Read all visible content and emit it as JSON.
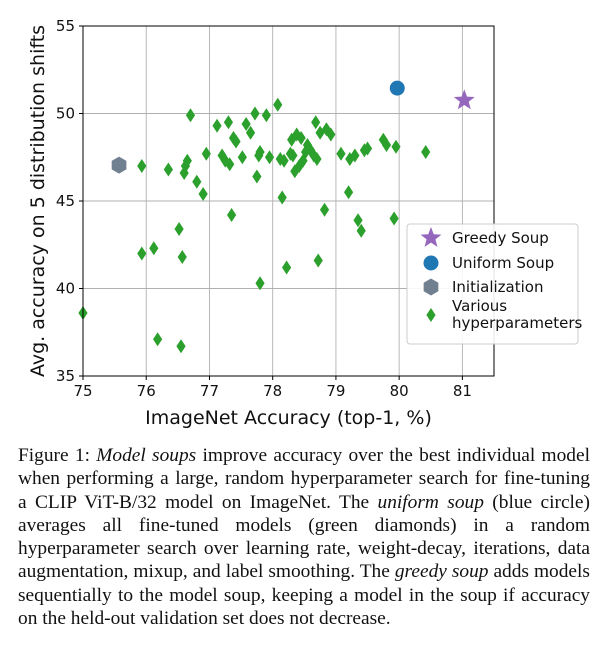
{
  "chart_data": {
    "type": "scatter",
    "xlabel": "ImageNet Accuracy (top-1, %)",
    "ylabel": "Avg. accuracy on 5 distribution shifts",
    "xlim": [
      75,
      81.5
    ],
    "ylim": [
      35,
      55
    ],
    "xticks": [
      75,
      76,
      77,
      78,
      79,
      80,
      81
    ],
    "yticks": [
      35,
      40,
      45,
      50,
      55
    ],
    "grid": true,
    "legend_position": "lower right",
    "series": [
      {
        "name": "Greedy Soup",
        "marker": "star",
        "color": "#9467bd",
        "points": [
          [
            81.03,
            50.75
          ]
        ]
      },
      {
        "name": "Uniform Soup",
        "marker": "circle",
        "color": "#1f77b4",
        "points": [
          [
            79.97,
            51.45
          ]
        ]
      },
      {
        "name": "Initialization",
        "marker": "hexagon",
        "color": "#708090",
        "points": [
          [
            75.57,
            47.05
          ]
        ]
      },
      {
        "name": "Various\nhyperparameters",
        "marker": "diamond",
        "color": "#2ca02c",
        "points": [
          [
            75.0,
            38.6
          ],
          [
            75.93,
            47.0
          ],
          [
            75.93,
            42.0
          ],
          [
            76.12,
            42.3
          ],
          [
            76.18,
            37.1
          ],
          [
            76.35,
            46.8
          ],
          [
            76.52,
            43.4
          ],
          [
            76.55,
            36.7
          ],
          [
            76.57,
            41.8
          ],
          [
            76.6,
            46.6
          ],
          [
            76.62,
            47.0
          ],
          [
            76.65,
            47.3
          ],
          [
            76.7,
            49.9
          ],
          [
            76.8,
            46.1
          ],
          [
            76.9,
            45.4
          ],
          [
            76.95,
            47.7
          ],
          [
            77.12,
            49.3
          ],
          [
            77.2,
            47.6
          ],
          [
            77.25,
            47.3
          ],
          [
            77.3,
            49.5
          ],
          [
            77.32,
            47.1
          ],
          [
            77.35,
            44.2
          ],
          [
            77.38,
            48.6
          ],
          [
            77.42,
            48.4
          ],
          [
            77.52,
            47.5
          ],
          [
            77.58,
            49.4
          ],
          [
            77.65,
            48.9
          ],
          [
            77.72,
            50.0
          ],
          [
            77.75,
            46.4
          ],
          [
            77.78,
            47.6
          ],
          [
            77.8,
            47.8
          ],
          [
            77.8,
            40.3
          ],
          [
            77.9,
            49.9
          ],
          [
            77.95,
            47.5
          ],
          [
            78.08,
            50.5
          ],
          [
            78.12,
            47.4
          ],
          [
            78.15,
            45.2
          ],
          [
            78.18,
            47.3
          ],
          [
            78.22,
            41.2
          ],
          [
            78.28,
            47.7
          ],
          [
            78.3,
            48.5
          ],
          [
            78.32,
            47.6
          ],
          [
            78.35,
            46.7
          ],
          [
            78.38,
            48.8
          ],
          [
            78.42,
            47.0
          ],
          [
            78.45,
            48.6
          ],
          [
            78.48,
            47.3
          ],
          [
            78.52,
            47.8
          ],
          [
            78.55,
            48.2
          ],
          [
            78.6,
            47.9
          ],
          [
            78.65,
            47.6
          ],
          [
            78.68,
            49.5
          ],
          [
            78.7,
            47.4
          ],
          [
            78.72,
            41.6
          ],
          [
            78.75,
            48.9
          ],
          [
            78.82,
            44.5
          ],
          [
            78.85,
            49.1
          ],
          [
            78.92,
            48.8
          ],
          [
            79.08,
            47.7
          ],
          [
            79.2,
            45.5
          ],
          [
            79.22,
            47.4
          ],
          [
            79.3,
            47.6
          ],
          [
            79.35,
            43.9
          ],
          [
            79.4,
            43.3
          ],
          [
            79.45,
            47.9
          ],
          [
            79.5,
            48.0
          ],
          [
            79.75,
            48.5
          ],
          [
            79.8,
            48.2
          ],
          [
            79.92,
            44.0
          ],
          [
            79.95,
            48.1
          ],
          [
            80.42,
            47.8
          ]
        ]
      }
    ]
  },
  "caption": {
    "label": "Figure 1: ",
    "t1": "Model soups",
    "t2": " improve accuracy over the best individual model when performing a large, random hyperparameter search for fine-tuning a CLIP ViT-B/32 model on ImageNet. The ",
    "t3": "uniform soup",
    "t4": " (blue circle) averages all fine-tuned models (green diamonds) in a random hyperparameter search over learning rate, weight-decay, iterations, data augmentation, mixup, and label smoothing. The ",
    "t5": "greedy soup",
    "t6": " adds models sequentially to the model soup, keeping a model in the soup if accuracy on the held-out validation set does not decrease."
  }
}
